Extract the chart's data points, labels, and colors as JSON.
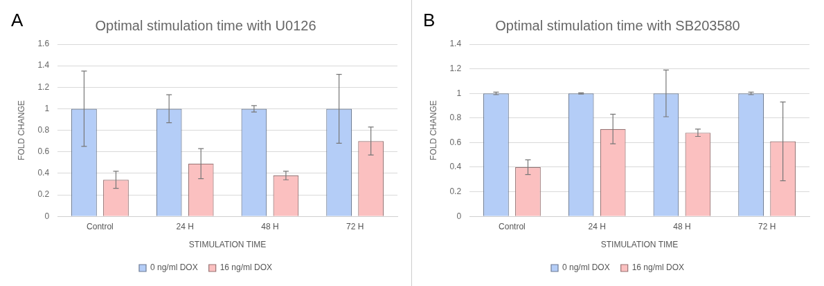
{
  "chart_data": [
    {
      "type": "bar",
      "title": "Optimal stimulation time with U0126",
      "annotations": [
        "A"
      ],
      "xlabel": "STIMULATION TIME",
      "ylabel": "FOLD CHANGE",
      "categories": [
        "Control",
        "24 H",
        "48 H",
        "72 H"
      ],
      "series": [
        {
          "name": "0 ng/ml DOX",
          "color": "#b4cdf7",
          "values": [
            1,
            1,
            1,
            1
          ],
          "errors": [
            0.35,
            0.13,
            0.03,
            0.32
          ]
        },
        {
          "name": "16 ng/ml DOX",
          "color": "#fbc0c0",
          "values": [
            0.34,
            0.49,
            0.38,
            0.7
          ],
          "errors": [
            0.08,
            0.14,
            0.04,
            0.13
          ]
        }
      ],
      "ylim": [
        0,
        1.6
      ],
      "yticks": [
        0,
        0.2,
        0.4,
        0.6,
        0.8,
        1,
        1.2,
        1.4,
        1.6
      ],
      "grid": "y",
      "legend": "bottom"
    },
    {
      "type": "bar",
      "title": "Optimal stimulation time with SB203580",
      "annotations": [
        "B"
      ],
      "xlabel": "STIMULATION TIME",
      "ylabel": "FOLD CHANGE",
      "categories": [
        "Control",
        "24 H",
        "48 H",
        "72 H"
      ],
      "series": [
        {
          "name": "0 ng/ml DOX",
          "color": "#b4cdf7",
          "values": [
            1,
            1,
            1,
            1
          ],
          "errors": [
            0.01,
            0.005,
            0.19,
            0.01
          ]
        },
        {
          "name": "16 ng/ml DOX",
          "color": "#fbc0c0",
          "values": [
            0.4,
            0.71,
            0.68,
            0.61
          ],
          "errors": [
            0.06,
            0.12,
            0.03,
            0.32
          ]
        }
      ],
      "ylim": [
        0,
        1.4
      ],
      "yticks": [
        0,
        0.2,
        0.4,
        0.6,
        0.8,
        1,
        1.2,
        1.4
      ],
      "grid": "y",
      "legend": "bottom"
    }
  ]
}
